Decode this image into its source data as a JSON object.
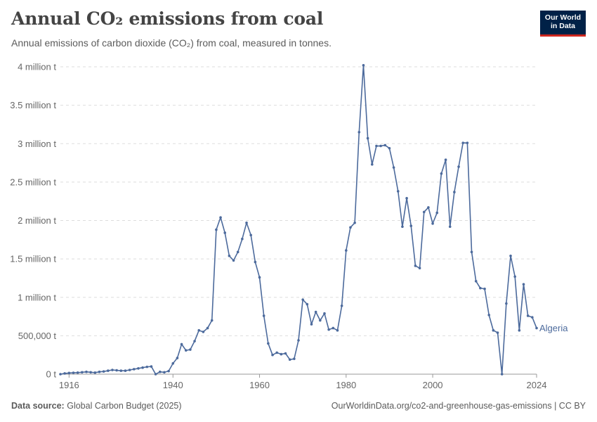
{
  "header": {
    "title": "Annual CO₂ emissions from coal",
    "subtitle": "Annual emissions of carbon dioxide (CO₂) from coal, measured in tonnes.",
    "logo_line1": "Our World",
    "logo_line2": "in Data"
  },
  "footer": {
    "source_label": "Data source:",
    "source_value": "Global Carbon Budget (2025)",
    "url": "OurWorldinData.org/co2-and-greenhouse-gas-emissions | CC BY"
  },
  "colors": {
    "series": "#4c6a9c",
    "grid": "#dddddd",
    "axis": "#999999",
    "logo_bg": "#002147",
    "logo_accent": "#ce261e"
  },
  "chart_data": {
    "type": "line",
    "title": "Annual CO₂ emissions from coal",
    "xlabel": "",
    "ylabel": "",
    "xlim": [
      1914,
      2024
    ],
    "ylim": [
      0,
      4000000
    ],
    "x_ticks": [
      1916,
      1940,
      1960,
      1980,
      2000,
      2024
    ],
    "y_ticks": [
      {
        "value": 0,
        "label": "0 t"
      },
      {
        "value": 500000,
        "label": "500,000 t"
      },
      {
        "value": 1000000,
        "label": "1 million t"
      },
      {
        "value": 1500000,
        "label": "1.5 million t"
      },
      {
        "value": 2000000,
        "label": "2 million t"
      },
      {
        "value": 2500000,
        "label": "2.5 million t"
      },
      {
        "value": 3000000,
        "label": "3 million t"
      },
      {
        "value": 3500000,
        "label": "3.5 million t"
      },
      {
        "value": 4000000,
        "label": "4 million t"
      }
    ],
    "grid": true,
    "legend": "end-of-line label",
    "series": [
      {
        "name": "Algeria",
        "x": [
          1914,
          1915,
          1916,
          1917,
          1918,
          1919,
          1920,
          1921,
          1922,
          1923,
          1924,
          1925,
          1926,
          1927,
          1928,
          1929,
          1930,
          1931,
          1932,
          1933,
          1934,
          1935,
          1936,
          1937,
          1938,
          1939,
          1940,
          1941,
          1942,
          1943,
          1944,
          1945,
          1946,
          1947,
          1948,
          1949,
          1950,
          1951,
          1952,
          1953,
          1954,
          1955,
          1956,
          1957,
          1958,
          1959,
          1960,
          1961,
          1962,
          1963,
          1964,
          1965,
          1966,
          1967,
          1968,
          1969,
          1970,
          1971,
          1972,
          1973,
          1974,
          1975,
          1976,
          1977,
          1978,
          1979,
          1980,
          1981,
          1982,
          1983,
          1984,
          1985,
          1986,
          1987,
          1988,
          1989,
          1990,
          1991,
          1992,
          1993,
          1994,
          1995,
          1996,
          1997,
          1998,
          1999,
          2000,
          2001,
          2002,
          2003,
          2004,
          2005,
          2006,
          2007,
          2008,
          2009,
          2010,
          2011,
          2012,
          2013,
          2014,
          2015,
          2016,
          2017,
          2018,
          2019,
          2020,
          2021,
          2022,
          2023,
          2024
        ],
        "y": [
          0,
          10000,
          15000,
          18000,
          20000,
          25000,
          30000,
          25000,
          20000,
          30000,
          35000,
          45000,
          55000,
          50000,
          45000,
          45000,
          55000,
          65000,
          75000,
          85000,
          95000,
          100000,
          0,
          30000,
          25000,
          40000,
          140000,
          210000,
          390000,
          310000,
          320000,
          430000,
          570000,
          550000,
          600000,
          700000,
          1880000,
          2040000,
          1840000,
          1540000,
          1480000,
          1590000,
          1760000,
          1970000,
          1810000,
          1460000,
          1260000,
          760000,
          400000,
          250000,
          280000,
          260000,
          270000,
          190000,
          200000,
          440000,
          970000,
          910000,
          650000,
          810000,
          700000,
          790000,
          580000,
          600000,
          570000,
          890000,
          1610000,
          1910000,
          1970000,
          3150000,
          4020000,
          3070000,
          2730000,
          2970000,
          2970000,
          2980000,
          2940000,
          2690000,
          2380000,
          1920000,
          2290000,
          1930000,
          1410000,
          1380000,
          2110000,
          2170000,
          1960000,
          2100000,
          2610000,
          2790000,
          1920000,
          2370000,
          2700000,
          3010000,
          3010000,
          1590000,
          1210000,
          1120000,
          1110000,
          770000,
          570000,
          540000,
          0,
          920000,
          1540000,
          1270000,
          570000,
          1170000,
          760000,
          740000,
          600000
        ]
      }
    ]
  }
}
